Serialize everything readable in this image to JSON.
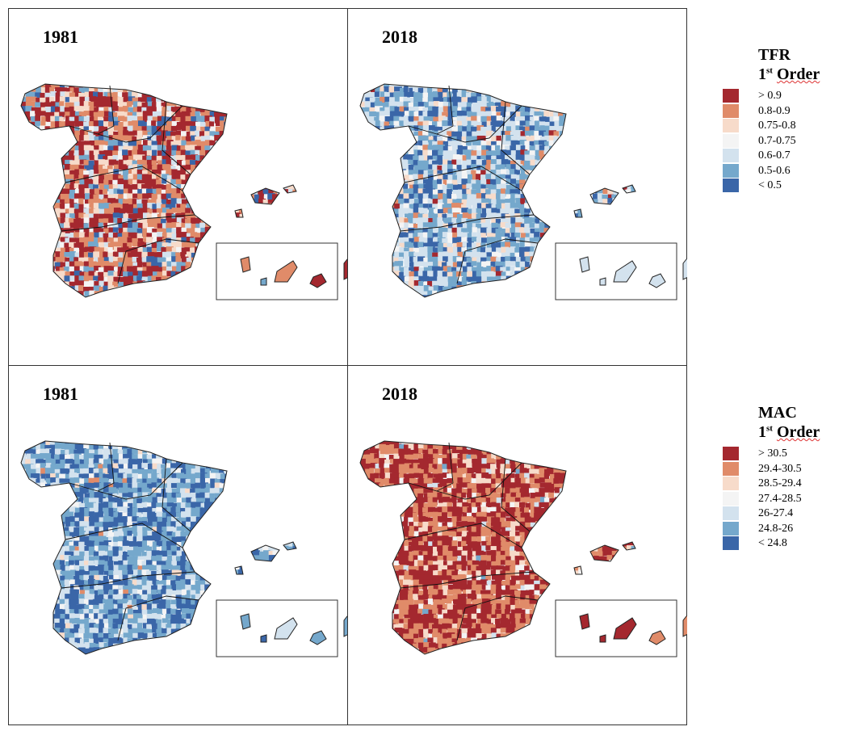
{
  "palette": [
    "#a4282f",
    "#e08b69",
    "#f7dbca",
    "#f4f4f4",
    "#d3e2ee",
    "#75a8cc",
    "#3a66a8"
  ],
  "panels": [
    {
      "title": "1981",
      "variable": "TFR"
    },
    {
      "title": "2018",
      "variable": "TFR"
    },
    {
      "title": "1981",
      "variable": "MAC"
    },
    {
      "title": "2018",
      "variable": "MAC"
    }
  ],
  "legends": [
    {
      "title": "TFR",
      "order_num": "1",
      "order_sup": "st",
      "order_word": "Order",
      "classes": [
        "> 0.9",
        "0.8-0.9",
        "0.75-0.8",
        "0.7-0.75",
        "0.6-0.7",
        "0.5-0.6",
        "< 0.5"
      ]
    },
    {
      "title": "MAC",
      "order_num": "1",
      "order_sup": "st",
      "order_word": "Order",
      "classes": [
        "> 30.5",
        "29.4-30.5",
        "28.5-29.4",
        "27.4-28.5",
        "26-27.4",
        "24.8-26",
        "< 24.8"
      ]
    }
  ]
}
